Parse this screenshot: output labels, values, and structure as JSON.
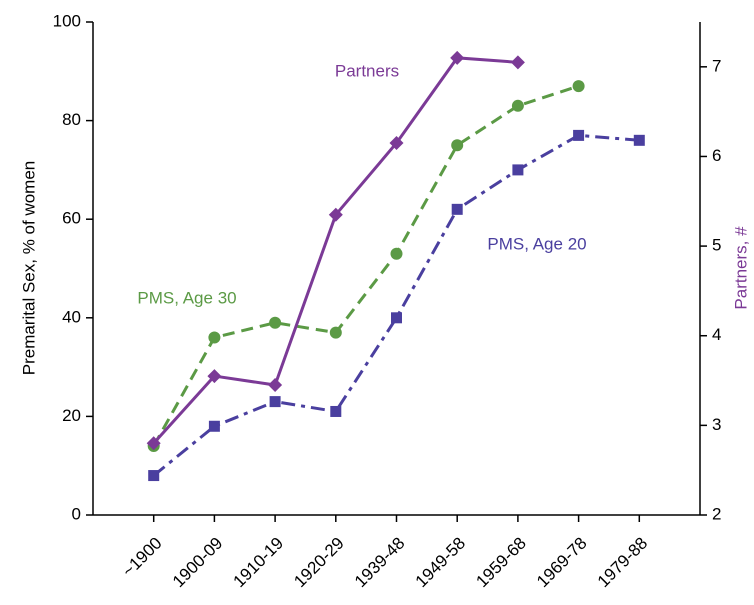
{
  "chart_data": {
    "type": "line",
    "categories": [
      "~1900",
      "1900-09",
      "1910-19",
      "1920-29",
      "1939-48",
      "1949-58",
      "1959-68",
      "1969-78",
      "1979-88"
    ],
    "ylabel": "Premarital Sex, % of women",
    "y2label": "Partners, #",
    "ylim": [
      0,
      100
    ],
    "yticks": [
      0,
      20,
      40,
      60,
      80,
      100
    ],
    "y2lim": [
      2,
      7.5
    ],
    "y2ticks": [
      2,
      3,
      4,
      5,
      6,
      7
    ],
    "series": [
      {
        "name": "PMS, Age 20",
        "color": "#4a3f9f",
        "marker": "square",
        "dash": "dashdot",
        "values": [
          8,
          18,
          23,
          21,
          40,
          62,
          70,
          77,
          76
        ]
      },
      {
        "name": "PMS, Age 30",
        "color": "#5b9a45",
        "marker": "circle",
        "dash": "dashed",
        "values": [
          14,
          36,
          39,
          37,
          53,
          75,
          83,
          87,
          null
        ]
      },
      {
        "name": "Partners",
        "color": "#7b3a96",
        "marker": "diamond",
        "dash": "solid",
        "axis": "y2",
        "values": [
          2.8,
          3.55,
          3.45,
          5.35,
          6.15,
          7.1,
          7.05,
          null,
          null
        ]
      }
    ]
  }
}
